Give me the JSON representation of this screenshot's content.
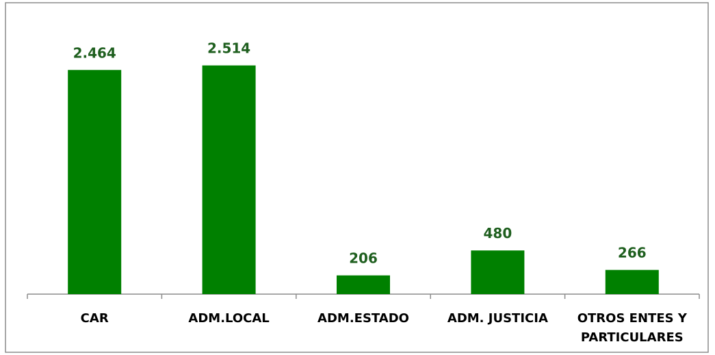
{
  "chart_data": {
    "type": "bar",
    "categories": [
      "CAR",
      "ADM.LOCAL",
      "ADM.ESTADO",
      "ADM. JUSTICIA",
      "OTROS ENTES Y PARTICULARES"
    ],
    "values": [
      2464,
      2514,
      206,
      480,
      266
    ],
    "value_labels": [
      "2.464",
      "2.514",
      "206",
      "480",
      "266"
    ],
    "color": "#008000",
    "ylim": [
      0,
      3000
    ]
  }
}
